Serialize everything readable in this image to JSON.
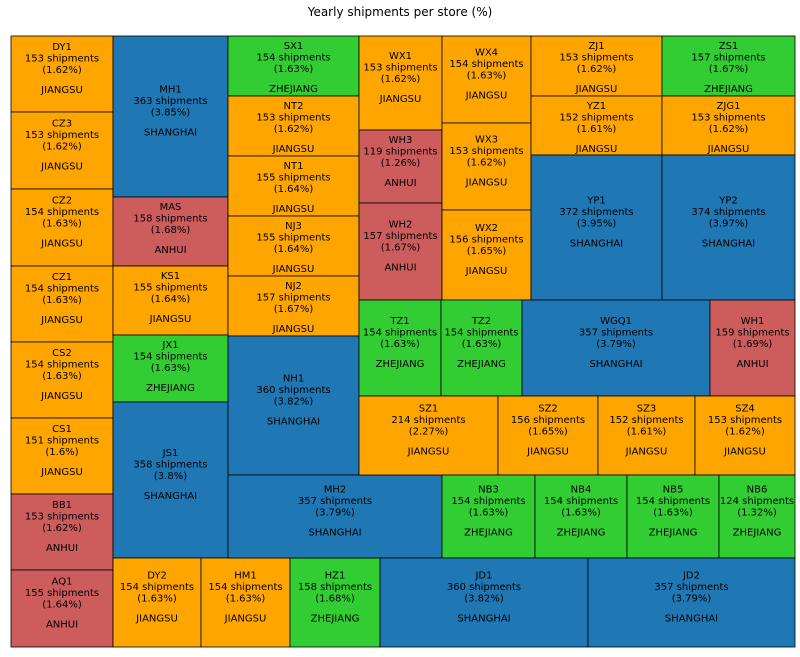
{
  "chart_data": {
    "type": "treemap",
    "title": "Yearly shipments per store (%)",
    "colors": {
      "JIANGSU": "#ffa500",
      "SHANGHAI": "#1f77b4",
      "ANHUI": "#cd5c5c",
      "ZHEJIANG": "#32cd32"
    },
    "items": [
      {
        "label": "DY1",
        "shipments": 153,
        "percent": 1.62,
        "region": "JIANGSU"
      },
      {
        "label": "CZ3",
        "shipments": 153,
        "percent": 1.62,
        "region": "JIANGSU"
      },
      {
        "label": "CZ2",
        "shipments": 154,
        "percent": 1.63,
        "region": "JIANGSU"
      },
      {
        "label": "CZ1",
        "shipments": 154,
        "percent": 1.63,
        "region": "JIANGSU"
      },
      {
        "label": "CS2",
        "shipments": 154,
        "percent": 1.63,
        "region": "JIANGSU"
      },
      {
        "label": "CS1",
        "shipments": 151,
        "percent": 1.6,
        "region": "JIANGSU"
      },
      {
        "label": "BB1",
        "shipments": 153,
        "percent": 1.62,
        "region": "ANHUI"
      },
      {
        "label": "AQ1",
        "shipments": 155,
        "percent": 1.64,
        "region": "ANHUI"
      },
      {
        "label": "MH1",
        "shipments": 363,
        "percent": 3.85,
        "region": "SHANGHAI"
      },
      {
        "label": "MAS",
        "shipments": 158,
        "percent": 1.68,
        "region": "ANHUI"
      },
      {
        "label": "KS1",
        "shipments": 155,
        "percent": 1.64,
        "region": "JIANGSU"
      },
      {
        "label": "JX1",
        "shipments": 154,
        "percent": 1.63,
        "region": "ZHEJIANG"
      },
      {
        "label": "JS1",
        "shipments": 358,
        "percent": 3.8,
        "region": "SHANGHAI"
      },
      {
        "label": "DY2",
        "shipments": 154,
        "percent": 1.63,
        "region": "JIANGSU"
      },
      {
        "label": "HM1",
        "shipments": 154,
        "percent": 1.63,
        "region": "JIANGSU"
      },
      {
        "label": "HZ1",
        "shipments": 158,
        "percent": 1.68,
        "region": "ZHEJIANG"
      },
      {
        "label": "SX1",
        "shipments": 154,
        "percent": 1.63,
        "region": "ZHEJIANG"
      },
      {
        "label": "NT2",
        "shipments": 153,
        "percent": 1.62,
        "region": "JIANGSU"
      },
      {
        "label": "NT1",
        "shipments": 155,
        "percent": 1.64,
        "region": "JIANGSU"
      },
      {
        "label": "NJ3",
        "shipments": 155,
        "percent": 1.64,
        "region": "JIANGSU"
      },
      {
        "label": "NJ2",
        "shipments": 157,
        "percent": 1.67,
        "region": "JIANGSU"
      },
      {
        "label": "NH1",
        "shipments": 360,
        "percent": 3.82,
        "region": "SHANGHAI"
      },
      {
        "label": "MH2",
        "shipments": 357,
        "percent": 3.79,
        "region": "SHANGHAI"
      },
      {
        "label": "WX1",
        "shipments": 153,
        "percent": 1.62,
        "region": "JIANGSU"
      },
      {
        "label": "WH3",
        "shipments": 119,
        "percent": 1.26,
        "region": "ANHUI"
      },
      {
        "label": "WH2",
        "shipments": 157,
        "percent": 1.67,
        "region": "ANHUI"
      },
      {
        "label": "WX4",
        "shipments": 154,
        "percent": 1.63,
        "region": "JIANGSU"
      },
      {
        "label": "WX3",
        "shipments": 153,
        "percent": 1.62,
        "region": "JIANGSU"
      },
      {
        "label": "WX2",
        "shipments": 156,
        "percent": 1.65,
        "region": "JIANGSU"
      },
      {
        "label": "ZJ1",
        "shipments": 153,
        "percent": 1.62,
        "region": "JIANGSU"
      },
      {
        "label": "ZS1",
        "shipments": 157,
        "percent": 1.67,
        "region": "ZHEJIANG"
      },
      {
        "label": "YZ1",
        "shipments": 152,
        "percent": 1.61,
        "region": "JIANGSU"
      },
      {
        "label": "ZJG1",
        "shipments": 153,
        "percent": 1.62,
        "region": "JIANGSU"
      },
      {
        "label": "YP1",
        "shipments": 372,
        "percent": 3.95,
        "region": "SHANGHAI"
      },
      {
        "label": "YP2",
        "shipments": 374,
        "percent": 3.97,
        "region": "SHANGHAI"
      },
      {
        "label": "TZ1",
        "shipments": 154,
        "percent": 1.63,
        "region": "ZHEJIANG"
      },
      {
        "label": "TZ2",
        "shipments": 154,
        "percent": 1.63,
        "region": "ZHEJIANG"
      },
      {
        "label": "WGQ1",
        "shipments": 357,
        "percent": 3.79,
        "region": "SHANGHAI"
      },
      {
        "label": "WH1",
        "shipments": 159,
        "percent": 1.69,
        "region": "ANHUI"
      },
      {
        "label": "SZ1",
        "shipments": 214,
        "percent": 2.27,
        "region": "JIANGSU"
      },
      {
        "label": "SZ2",
        "shipments": 156,
        "percent": 1.65,
        "region": "JIANGSU"
      },
      {
        "label": "SZ3",
        "shipments": 152,
        "percent": 1.61,
        "region": "JIANGSU"
      },
      {
        "label": "SZ4",
        "shipments": 153,
        "percent": 1.62,
        "region": "JIANGSU"
      },
      {
        "label": "NB3",
        "shipments": 154,
        "percent": 1.63,
        "region": "ZHEJIANG"
      },
      {
        "label": "NB4",
        "shipments": 154,
        "percent": 1.63,
        "region": "ZHEJIANG"
      },
      {
        "label": "NB5",
        "shipments": 154,
        "percent": 1.63,
        "region": "ZHEJIANG"
      },
      {
        "label": "NB6",
        "shipments": 124,
        "percent": 1.32,
        "region": "ZHEJIANG"
      },
      {
        "label": "JD1",
        "shipments": 360,
        "percent": 3.82,
        "region": "SHANGHAI"
      },
      {
        "label": "JD2",
        "shipments": 357,
        "percent": 3.79,
        "region": "SHANGHAI"
      }
    ]
  }
}
